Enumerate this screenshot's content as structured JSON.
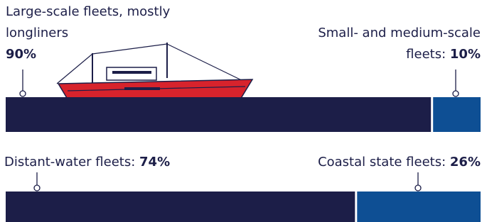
{
  "chart_data": [
    {
      "type": "stacked-bar",
      "series": [
        {
          "name": "Large-scale fleets, mostly longliners",
          "color": "#1c1e48",
          "values": [
            90
          ],
          "value_labels": [
            "90%"
          ]
        },
        {
          "name": "Small- and medium-scale fleets:",
          "color": "#0e4f94",
          "values": [
            10
          ],
          "value_labels": [
            "10%"
          ]
        }
      ],
      "xlim": [
        0,
        100
      ]
    },
    {
      "type": "stacked-bar",
      "series": [
        {
          "name": "Distant-water fleets:",
          "color": "#1c1e48",
          "values": [
            74
          ],
          "value_labels": [
            "74%"
          ]
        },
        {
          "name": "Coastal state fleets:",
          "color": "#0e4f94",
          "values": [
            26
          ],
          "value_labels": [
            "26%"
          ]
        }
      ],
      "xlim": [
        0,
        100
      ]
    }
  ]
}
